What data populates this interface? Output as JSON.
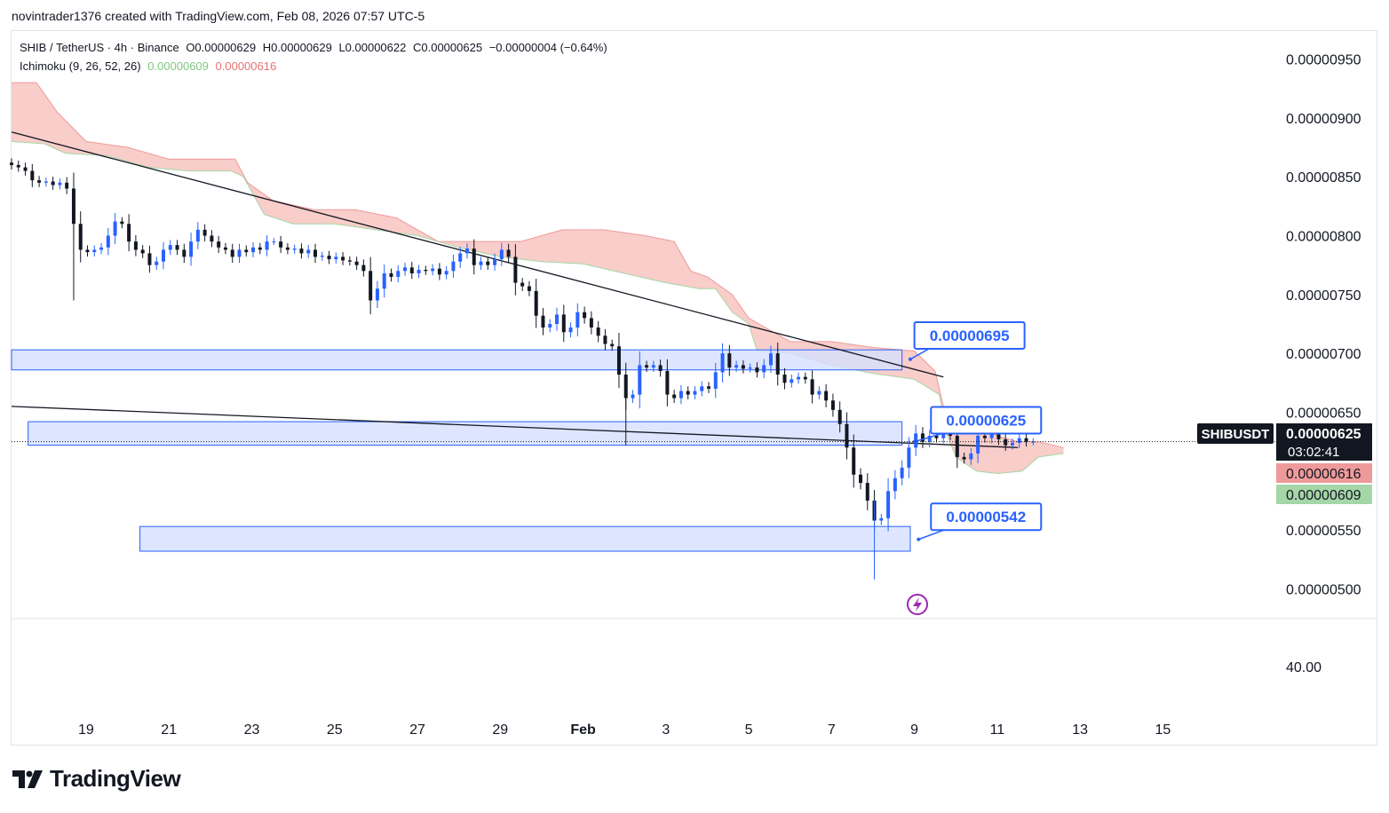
{
  "header": {
    "attribution": "novintrader1376 created with TradingView.com, Feb 08, 2026 07:57 UTC-5"
  },
  "legend": {
    "symbol": "SHIB / TetherUS · 4h · Binance",
    "open": "O0.00000629",
    "high": "H0.00000629",
    "low": "L0.00000622",
    "close": "C0.00000625",
    "change": "−0.00000004 (−0.64%)",
    "indicator": "Ichimoku (9, 26, 52, 26)",
    "span_a": "0.00000609",
    "span_b": "0.00000616"
  },
  "price_tag": {
    "ticker": "SHIBUSDT",
    "price": "0.00000625",
    "countdown": "03:02:41",
    "span_b_tag": "0.00000616",
    "span_a_tag": "0.00000609"
  },
  "lower_pane": {
    "axis_label": "40.00"
  },
  "brand": {
    "name": "TradingView"
  },
  "colors": {
    "bull": "#2962ff",
    "bear": "#131722",
    "cloud_bear": "#f8c4c0",
    "cloud_bull": "#c8e6c9",
    "zone": "#d6e0ff",
    "zone_border": "#2962ff",
    "accent": "#9c27b0"
  },
  "chart_data": {
    "type": "candlestick",
    "title": "SHIB / TetherUS · 4h · Binance",
    "ylim": [
      4.8e-06,
      9.7e-06
    ],
    "y_ticks": [
      {
        "v": 9.5e-06,
        "label": "0.00000950"
      },
      {
        "v": 9e-06,
        "label": "0.00000900"
      },
      {
        "v": 8.5e-06,
        "label": "0.00000850"
      },
      {
        "v": 8e-06,
        "label": "0.00000800"
      },
      {
        "v": 7.5e-06,
        "label": "0.00000750"
      },
      {
        "v": 7e-06,
        "label": "0.00000700"
      },
      {
        "v": 6.5e-06,
        "label": "0.00000650"
      },
      {
        "v": 5.5e-06,
        "label": "0.00000550"
      },
      {
        "v": 5e-06,
        "label": "0.00000500"
      }
    ],
    "x_ticks": [
      {
        "day": 19,
        "label": "19"
      },
      {
        "day": 21,
        "label": "21"
      },
      {
        "day": 23,
        "label": "23"
      },
      {
        "day": 25,
        "label": "25"
      },
      {
        "day": 27,
        "label": "27"
      },
      {
        "day": 29,
        "label": "29"
      },
      {
        "day": 31,
        "label": "Feb",
        "bold": true
      },
      {
        "day": 33,
        "label": "3"
      },
      {
        "day": 35,
        "label": "5"
      },
      {
        "day": 37,
        "label": "7"
      },
      {
        "day": 39,
        "label": "9"
      },
      {
        "day": 41,
        "label": "11"
      },
      {
        "day": 43,
        "label": "13"
      },
      {
        "day": 45,
        "label": "15"
      }
    ],
    "x_range_days": [
      17.2,
      47.8
    ],
    "closes": [
      8.6e-06,
      8.58e-06,
      8.55e-06,
      8.47e-06,
      8.45e-06,
      8.46e-06,
      8.43e-06,
      8.45e-06,
      8.4e-06,
      8.1e-06,
      7.88e-06,
      7.86e-06,
      7.88e-06,
      7.9e-06,
      8e-06,
      8.12e-06,
      8.1e-06,
      7.95e-06,
      7.88e-06,
      7.85e-06,
      7.75e-06,
      7.78e-06,
      7.88e-06,
      7.92e-06,
      7.88e-06,
      7.82e-06,
      7.95e-06,
      8.05e-06,
      8e-06,
      7.95e-06,
      7.9e-06,
      7.88e-06,
      7.82e-06,
      7.88e-06,
      7.86e-06,
      7.9e-06,
      7.88e-06,
      7.95e-06,
      7.95e-06,
      7.9e-06,
      7.88e-06,
      7.89e-06,
      7.85e-06,
      7.88e-06,
      7.82e-06,
      7.83e-06,
      7.8e-06,
      7.82e-06,
      7.79e-06,
      7.78e-06,
      7.75e-06,
      7.7e-06,
      7.45e-06,
      7.55e-06,
      7.68e-06,
      7.65e-06,
      7.7e-06,
      7.73e-06,
      7.68e-06,
      7.71e-06,
      7.7e-06,
      7.72e-06,
      7.67e-06,
      7.7e-06,
      7.78e-06,
      7.85e-06,
      7.89e-06,
      7.75e-06,
      7.78e-06,
      7.75e-06,
      7.8e-06,
      7.88e-06,
      7.82e-06,
      7.6e-06,
      7.57e-06,
      7.53e-06,
      7.32e-06,
      7.22e-06,
      7.25e-06,
      7.33e-06,
      7.18e-06,
      7.22e-06,
      7.35e-06,
      7.3e-06,
      7.22e-06,
      7.15e-06,
      7.08e-06,
      7.06e-06,
      6.82e-06,
      6.62e-06,
      6.65e-06,
      6.9e-06,
      6.88e-06,
      6.9e-06,
      6.85e-06,
      6.65e-06,
      6.62e-06,
      6.68e-06,
      6.65e-06,
      6.68e-06,
      6.72e-06,
      6.7e-06,
      6.84e-06,
      7e-06,
      6.88e-06,
      6.9e-06,
      6.87e-06,
      6.88e-06,
      6.84e-06,
      6.9e-06,
      7e-06,
      6.82e-06,
      6.75e-06,
      6.78e-06,
      6.8e-06,
      6.78e-06,
      6.65e-06,
      6.68e-06,
      6.6e-06,
      6.52e-06,
      6.4e-06,
      6.2e-06,
      5.97e-06,
      5.9e-06,
      5.75e-06,
      5.58e-06,
      5.6e-06,
      5.83e-06,
      5.94e-06,
      6.03e-06,
      6.2e-06,
      6.32e-06,
      6.25e-06,
      6.3e-06,
      6.28e-06,
      6.32e-06,
      6.3e-06,
      6.12e-06,
      6.1e-06,
      6.15e-06,
      6.3e-06,
      6.28e-06,
      6.32e-06,
      6.27e-06,
      6.22e-06,
      6.24e-06,
      6.28e-06,
      6.25e-06,
      6.25e-06
    ],
    "ichimoku": {
      "start_day": 17.2,
      "span_a": [
        [
          17.2,
          8.8e-06
        ],
        [
          18.0,
          8.78e-06
        ],
        [
          18.5,
          8.7e-06
        ],
        [
          19.5,
          8.68e-06
        ],
        [
          20.5,
          8.58e-06
        ],
        [
          21.5,
          8.55e-06
        ],
        [
          22.5,
          8.55e-06
        ],
        [
          22.8,
          8.5e-06
        ],
        [
          23.3,
          8.18e-06
        ],
        [
          24.0,
          8.1e-06
        ],
        [
          25.0,
          8.1e-06
        ],
        [
          26.0,
          8.05e-06
        ],
        [
          27.0,
          8e-06
        ],
        [
          28.0,
          7.9e-06
        ],
        [
          29.0,
          7.82e-06
        ],
        [
          30.0,
          7.78e-06
        ],
        [
          31.0,
          7.76e-06
        ],
        [
          32.0,
          7.68e-06
        ],
        [
          33.0,
          7.6e-06
        ],
        [
          33.8,
          7.55e-06
        ],
        [
          34.2,
          7.55e-06
        ],
        [
          34.6,
          7.35e-06
        ],
        [
          35.0,
          7.25e-06
        ],
        [
          35.2,
          7.02e-06
        ],
        [
          36.0,
          7e-06
        ],
        [
          37.0,
          6.9e-06
        ],
        [
          38.0,
          6.83e-06
        ],
        [
          39.0,
          6.78e-06
        ],
        [
          39.6,
          6.65e-06
        ],
        [
          39.8,
          6.3e-06
        ],
        [
          40.0,
          6.12e-06
        ],
        [
          40.5,
          6e-06
        ],
        [
          41.0,
          5.98e-06
        ],
        [
          41.6,
          6e-06
        ],
        [
          42.0,
          6.12e-06
        ],
        [
          42.6,
          6.15e-06
        ]
      ],
      "span_b": [
        [
          17.2,
          9.3e-06
        ],
        [
          17.8,
          9.3e-06
        ],
        [
          18.3,
          9.05e-06
        ],
        [
          19.0,
          8.8e-06
        ],
        [
          20.0,
          8.75e-06
        ],
        [
          21.0,
          8.65e-06
        ],
        [
          22.0,
          8.65e-06
        ],
        [
          22.6,
          8.65e-06
        ],
        [
          22.9,
          8.45e-06
        ],
        [
          23.5,
          8.3e-06
        ],
        [
          24.5,
          8.22e-06
        ],
        [
          25.5,
          8.22e-06
        ],
        [
          26.5,
          8.15e-06
        ],
        [
          27.5,
          7.95e-06
        ],
        [
          28.5,
          7.95e-06
        ],
        [
          29.5,
          7.95e-06
        ],
        [
          30.5,
          8.05e-06
        ],
        [
          31.5,
          8.05e-06
        ],
        [
          32.5,
          8e-06
        ],
        [
          33.2,
          7.95e-06
        ],
        [
          33.6,
          7.7e-06
        ],
        [
          34.0,
          7.65e-06
        ],
        [
          34.6,
          7.5e-06
        ],
        [
          35.0,
          7.3e-06
        ],
        [
          36.0,
          7.1e-06
        ],
        [
          37.0,
          7.1e-06
        ],
        [
          38.0,
          7.05e-06
        ],
        [
          39.0,
          7.02e-06
        ],
        [
          39.5,
          6.85e-06
        ],
        [
          39.7,
          6.55e-06
        ],
        [
          40.0,
          6.5e-06
        ],
        [
          40.5,
          6.45e-06
        ],
        [
          41.0,
          6.3e-06
        ],
        [
          41.5,
          6.25e-06
        ],
        [
          42.0,
          6.25e-06
        ],
        [
          42.6,
          6.2e-06
        ]
      ]
    },
    "trendlines": [
      {
        "from": [
          17.2,
          8.88e-06
        ],
        "to": [
          39.7,
          6.8e-06
        ]
      },
      {
        "from": [
          17.2,
          6.55e-06
        ],
        "to": [
          41.5,
          6.2e-06
        ]
      }
    ],
    "zones": [
      {
        "from_day": 17.2,
        "to_day": 38.7,
        "top": 7.03e-06,
        "bottom": 6.86e-06
      },
      {
        "from_day": 17.6,
        "to_day": 38.7,
        "top": 6.42e-06,
        "bottom": 6.22e-06
      },
      {
        "from_day": 20.3,
        "to_day": 38.9,
        "top": 5.53e-06,
        "bottom": 5.32e-06
      }
    ],
    "callouts": [
      {
        "label": "0.00000695",
        "box_day": 39.0,
        "box_price": 7.16e-06,
        "tip_day": 38.9,
        "tip_price": 6.95e-06
      },
      {
        "label": "0.00000625",
        "box_day": 39.4,
        "box_price": 6.44e-06,
        "tip_day": 39.0,
        "tip_price": 6.25e-06
      },
      {
        "label": "0.00000542",
        "box_day": 39.4,
        "box_price": 5.62e-06,
        "tip_day": 39.1,
        "tip_price": 5.42e-06
      }
    ],
    "last_price": 6.25e-06
  }
}
